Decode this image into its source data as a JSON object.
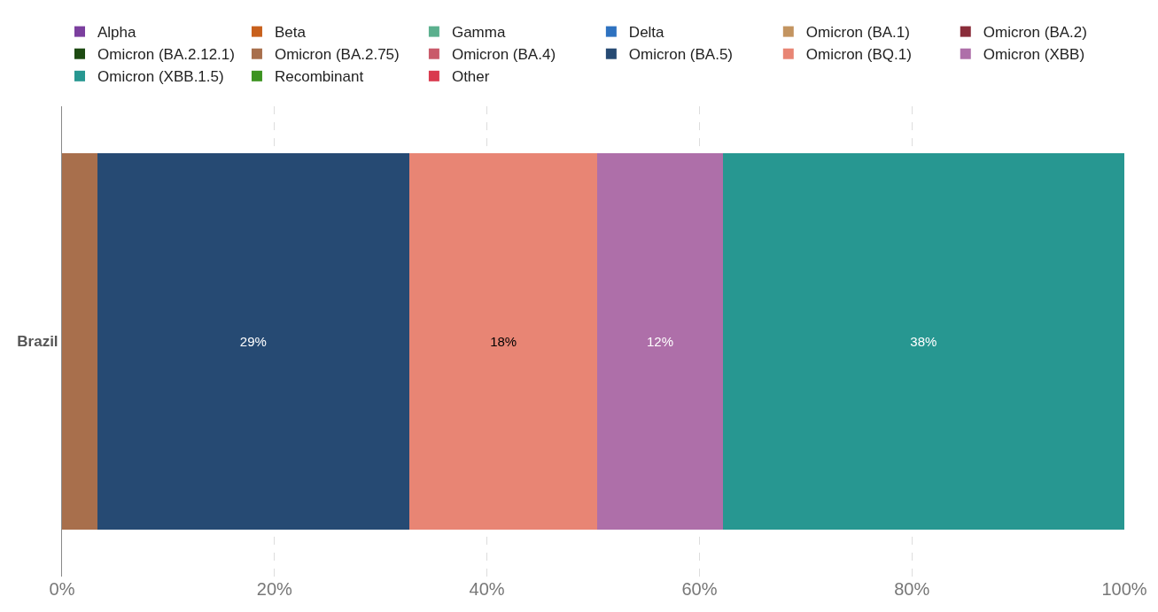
{
  "chart_data": {
    "type": "bar",
    "orientation": "horizontal",
    "stacked": true,
    "categories": [
      "Brazil"
    ],
    "series": [
      {
        "name": "Alpha",
        "color": "#7b3f9e",
        "values": [
          0
        ]
      },
      {
        "name": "Beta",
        "color": "#c8601c",
        "values": [
          0
        ]
      },
      {
        "name": "Gamma",
        "color": "#5bb08e",
        "values": [
          0
        ]
      },
      {
        "name": "Delta",
        "color": "#2e72c0",
        "values": [
          0
        ]
      },
      {
        "name": "Omicron (BA.1)",
        "color": "#c39460",
        "values": [
          0
        ]
      },
      {
        "name": "Omicron (BA.2)",
        "color": "#8a2d3a",
        "values": [
          0
        ]
      },
      {
        "name": "Omicron (BA.2.12.1)",
        "color": "#1d4a12",
        "values": [
          0
        ]
      },
      {
        "name": "Omicron (BA.2.75)",
        "color": "#a86f4c",
        "values": [
          3.3
        ]
      },
      {
        "name": "Omicron (BA.4)",
        "color": "#c95a6a",
        "values": [
          0
        ]
      },
      {
        "name": "Omicron (BA.5)",
        "color": "#264a73",
        "values": [
          29.4
        ],
        "value_labels": [
          "29%"
        ]
      },
      {
        "name": "Omicron (BQ.1)",
        "color": "#e88574",
        "values": [
          17.7
        ],
        "value_labels": [
          "18%"
        ]
      },
      {
        "name": "Omicron (XBB)",
        "color": "#ae6fa9",
        "values": [
          11.8
        ],
        "value_labels": [
          "12%"
        ]
      },
      {
        "name": "Omicron (XBB.1.5)",
        "color": "#279791",
        "values": [
          37.8
        ],
        "value_labels": [
          "38%"
        ]
      },
      {
        "name": "Recombinant",
        "color": "#3c9320",
        "values": [
          0
        ]
      },
      {
        "name": "Other",
        "color": "#d93a4e",
        "values": [
          0
        ]
      }
    ],
    "xlim": [
      0,
      100
    ],
    "xticks": [
      {
        "value": 0,
        "label": "0%"
      },
      {
        "value": 20,
        "label": "20%"
      },
      {
        "value": 40,
        "label": "40%"
      },
      {
        "value": 60,
        "label": "60%"
      },
      {
        "value": 80,
        "label": "80%"
      },
      {
        "value": 100,
        "label": "100%"
      }
    ],
    "grid": "x",
    "legend": "top"
  }
}
